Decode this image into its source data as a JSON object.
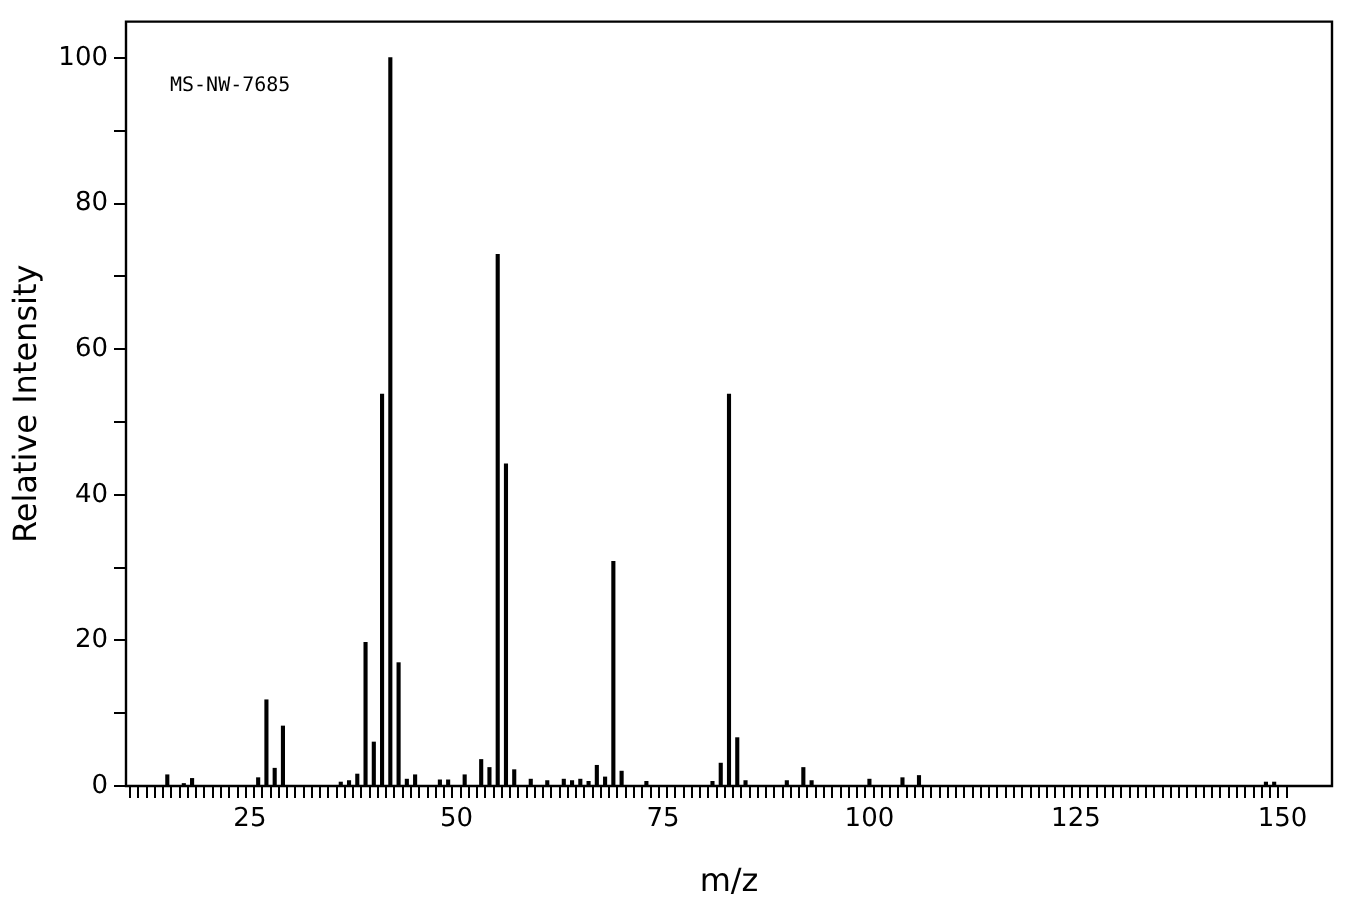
{
  "chart_data": {
    "type": "bar",
    "xlabel": "m/z",
    "ylabel": "Relative Intensity",
    "annotations": [
      "MS-NW-7685"
    ],
    "x": [
      15,
      17,
      18,
      26,
      27,
      28,
      29,
      36,
      37,
      38,
      39,
      40,
      41,
      42,
      43,
      44,
      45,
      48,
      49,
      51,
      53,
      54,
      55,
      56,
      57,
      59,
      61,
      63,
      64,
      65,
      66,
      67,
      68,
      69,
      70,
      73,
      81,
      82,
      83,
      84,
      85,
      90,
      92,
      93,
      100,
      104,
      106,
      148,
      149
    ],
    "values": [
      1.5,
      0.3,
      1.0,
      1.1,
      11.8,
      2.4,
      8.2,
      0.5,
      0.7,
      1.6,
      19.7,
      6.0,
      53.8,
      100,
      16.9,
      0.9,
      1.5,
      0.8,
      0.8,
      1.5,
      3.6,
      2.5,
      73,
      44.2,
      2.2,
      0.9,
      0.7,
      0.9,
      0.7,
      0.9,
      0.6,
      2.8,
      1.2,
      30.8,
      2.0,
      0.6,
      0.6,
      3.1,
      53.8,
      6.6,
      0.7,
      0.7,
      2.5,
      0.7,
      0.9,
      1.1,
      1.4,
      0.5,
      0.5
    ],
    "color": "#000000",
    "xlim": [
      10,
      156
    ],
    "ylim": [
      0,
      105
    ],
    "xticks": [
      {
        "value": 10,
        "label": null
      },
      {
        "value": 11,
        "label": null
      },
      {
        "value": 12,
        "label": null
      },
      {
        "value": 13,
        "label": null
      },
      {
        "value": 14,
        "label": null
      },
      {
        "value": 15,
        "label": null
      },
      {
        "value": 16,
        "label": null
      },
      {
        "value": 17,
        "label": null
      },
      {
        "value": 18,
        "label": null
      },
      {
        "value": 19,
        "label": null
      },
      {
        "value": 20,
        "label": null
      },
      {
        "value": 21,
        "label": null
      },
      {
        "value": 22,
        "label": null
      },
      {
        "value": 23,
        "label": null
      },
      {
        "value": 24,
        "label": null
      },
      25,
      {
        "value": 26,
        "label": null
      },
      {
        "value": 27,
        "label": null
      },
      {
        "value": 28,
        "label": null
      },
      {
        "value": 29,
        "label": null
      },
      {
        "value": 30,
        "label": null
      },
      {
        "value": 31,
        "label": null
      },
      {
        "value": 32,
        "label": null
      },
      {
        "value": 33,
        "label": null
      },
      {
        "value": 34,
        "label": null
      },
      {
        "value": 35,
        "label": null
      },
      {
        "value": 36,
        "label": null
      },
      {
        "value": 37,
        "label": null
      },
      {
        "value": 38,
        "label": null
      },
      {
        "value": 39,
        "label": null
      },
      {
        "value": 40,
        "label": null
      },
      {
        "value": 41,
        "label": null
      },
      {
        "value": 42,
        "label": null
      },
      {
        "value": 43,
        "label": null
      },
      {
        "value": 44,
        "label": null
      },
      {
        "value": 45,
        "label": null
      },
      {
        "value": 46,
        "label": null
      },
      {
        "value": 47,
        "label": null
      },
      {
        "value": 48,
        "label": null
      },
      {
        "value": 49,
        "label": null
      },
      50,
      {
        "value": 51,
        "label": null
      },
      {
        "value": 52,
        "label": null
      },
      {
        "value": 53,
        "label": null
      },
      {
        "value": 54,
        "label": null
      },
      {
        "value": 55,
        "label": null
      },
      {
        "value": 56,
        "label": null
      },
      {
        "value": 57,
        "label": null
      },
      {
        "value": 58,
        "label": null
      },
      {
        "value": 59,
        "label": null
      },
      {
        "value": 60,
        "label": null
      },
      {
        "value": 61,
        "label": null
      },
      {
        "value": 62,
        "label": null
      },
      {
        "value": 63,
        "label": null
      },
      {
        "value": 64,
        "label": null
      },
      {
        "value": 65,
        "label": null
      },
      {
        "value": 66,
        "label": null
      },
      {
        "value": 67,
        "label": null
      },
      {
        "value": 68,
        "label": null
      },
      {
        "value": 69,
        "label": null
      },
      {
        "value": 70,
        "label": null
      },
      {
        "value": 71,
        "label": null
      },
      {
        "value": 72,
        "label": null
      },
      {
        "value": 73,
        "label": null
      },
      {
        "value": 74,
        "label": null
      },
      75,
      {
        "value": 76,
        "label": null
      },
      {
        "value": 77,
        "label": null
      },
      {
        "value": 78,
        "label": null
      },
      {
        "value": 79,
        "label": null
      },
      {
        "value": 80,
        "label": null
      },
      {
        "value": 81,
        "label": null
      },
      {
        "value": 82,
        "label": null
      },
      {
        "value": 83,
        "label": null
      },
      {
        "value": 84,
        "label": null
      },
      {
        "value": 85,
        "label": null
      },
      {
        "value": 86,
        "label": null
      },
      {
        "value": 87,
        "label": null
      },
      {
        "value": 88,
        "label": null
      },
      {
        "value": 89,
        "label": null
      },
      {
        "value": 90,
        "label": null
      },
      {
        "value": 91,
        "label": null
      },
      {
        "value": 92,
        "label": null
      },
      {
        "value": 93,
        "label": null
      },
      {
        "value": 94,
        "label": null
      },
      {
        "value": 95,
        "label": null
      },
      {
        "value": 96,
        "label": null
      },
      {
        "value": 97,
        "label": null
      },
      {
        "value": 98,
        "label": null
      },
      {
        "value": 99,
        "label": null
      },
      100,
      {
        "value": 101,
        "label": null
      },
      {
        "value": 102,
        "label": null
      },
      {
        "value": 103,
        "label": null
      },
      {
        "value": 104,
        "label": null
      },
      {
        "value": 105,
        "label": null
      },
      {
        "value": 106,
        "label": null
      },
      {
        "value": 107,
        "label": null
      },
      {
        "value": 108,
        "label": null
      },
      {
        "value": 109,
        "label": null
      },
      {
        "value": 110,
        "label": null
      },
      {
        "value": 111,
        "label": null
      },
      {
        "value": 112,
        "label": null
      },
      {
        "value": 113,
        "label": null
      },
      {
        "value": 114,
        "label": null
      },
      {
        "value": 115,
        "label": null
      },
      {
        "value": 116,
        "label": null
      },
      {
        "value": 117,
        "label": null
      },
      {
        "value": 118,
        "label": null
      },
      {
        "value": 119,
        "label": null
      },
      {
        "value": 120,
        "label": null
      },
      {
        "value": 121,
        "label": null
      },
      {
        "value": 122,
        "label": null
      },
      {
        "value": 123,
        "label": null
      },
      {
        "value": 124,
        "label": null
      },
      125,
      {
        "value": 126,
        "label": null
      },
      {
        "value": 127,
        "label": null
      },
      {
        "value": 128,
        "label": null
      },
      {
        "value": 129,
        "label": null
      },
      {
        "value": 130,
        "label": null
      },
      {
        "value": 131,
        "label": null
      },
      {
        "value": 132,
        "label": null
      },
      {
        "value": 133,
        "label": null
      },
      {
        "value": 134,
        "label": null
      },
      {
        "value": 135,
        "label": null
      },
      {
        "value": 136,
        "label": null
      },
      {
        "value": 137,
        "label": null
      },
      {
        "value": 138,
        "label": null
      },
      {
        "value": 139,
        "label": null
      },
      {
        "value": 140,
        "label": null
      },
      {
        "value": 141,
        "label": null
      },
      {
        "value": 142,
        "label": null
      },
      {
        "value": 143,
        "label": null
      },
      {
        "value": 144,
        "label": null
      },
      {
        "value": 145,
        "label": null
      },
      {
        "value": 146,
        "label": null
      },
      {
        "value": 147,
        "label": null
      },
      {
        "value": 148,
        "label": null
      },
      {
        "value": 149,
        "label": null
      },
      150
    ],
    "yticks": [
      0,
      {
        "value": 10,
        "label": null
      },
      20,
      {
        "value": 30,
        "label": null
      },
      40,
      {
        "value": 50,
        "label": null
      },
      60,
      {
        "value": 70,
        "label": null
      },
      80,
      {
        "value": 90,
        "label": null
      },
      100
    ]
  }
}
